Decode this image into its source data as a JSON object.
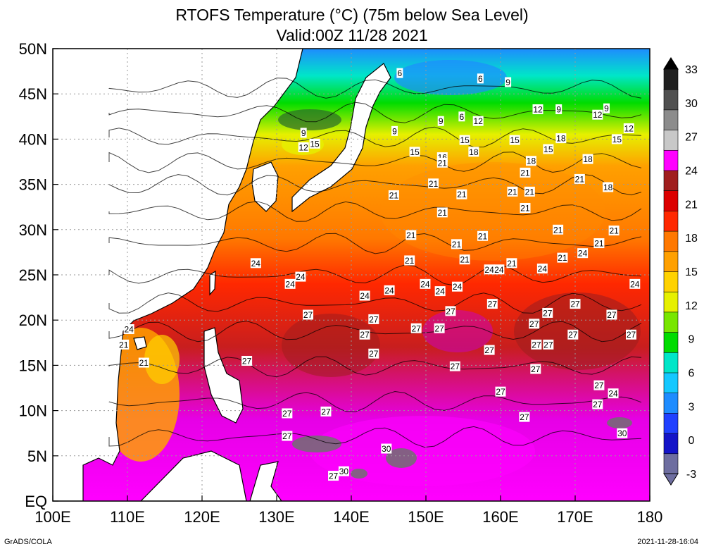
{
  "title_line1": "RTOFS Temperature (°C) (75m below Sea Level)",
  "title_line2": "Valid:00Z 11/28 2021",
  "footer_left": "GrADS/COLA",
  "footer_right": "2021-11-28-16:04",
  "map": {
    "lon_range": [
      100,
      180
    ],
    "lat_range": [
      0,
      50
    ],
    "x_ticks": [
      {
        "v": 100,
        "label": "100E"
      },
      {
        "v": 110,
        "label": "110E"
      },
      {
        "v": 120,
        "label": "120E"
      },
      {
        "v": 130,
        "label": "130E"
      },
      {
        "v": 140,
        "label": "140E"
      },
      {
        "v": 150,
        "label": "150E"
      },
      {
        "v": 160,
        "label": "160E"
      },
      {
        "v": 170,
        "label": "170E"
      },
      {
        "v": 180,
        "label": "180"
      }
    ],
    "y_ticks": [
      {
        "v": 0,
        "label": "EQ"
      },
      {
        "v": 5,
        "label": "5N"
      },
      {
        "v": 10,
        "label": "10N"
      },
      {
        "v": 15,
        "label": "15N"
      },
      {
        "v": 20,
        "label": "20N"
      },
      {
        "v": 25,
        "label": "25N"
      },
      {
        "v": 30,
        "label": "30N"
      },
      {
        "v": 35,
        "label": "35N"
      },
      {
        "v": 40,
        "label": "40N"
      },
      {
        "v": 45,
        "label": "45N"
      },
      {
        "v": 50,
        "label": "50N"
      }
    ],
    "grid": true
  },
  "colorbar": {
    "labels": [
      "-3",
      "0",
      "3",
      "6",
      "9",
      "12",
      "15",
      "18",
      "21",
      "24",
      "27",
      "30",
      "33"
    ],
    "colors": [
      "#6e6ea0",
      "#1414c8",
      "#2040ff",
      "#1e8cff",
      "#14c8ff",
      "#00e6c8",
      "#00dc00",
      "#78e600",
      "#e6f000",
      "#ffd200",
      "#ffa000",
      "#ff7800",
      "#ff2800",
      "#dc0000",
      "#a01e1e",
      "#ff00ff",
      "#c8c8c8",
      "#8c8c8c",
      "#505050",
      "#202020"
    ]
  },
  "contour_labels": [
    {
      "t": "6",
      "lon": 157.3,
      "lat": 46.7
    },
    {
      "t": "9",
      "lon": 161.0,
      "lat": 46.3
    },
    {
      "t": "12",
      "lon": 165.0,
      "lat": 43.3
    },
    {
      "t": "9",
      "lon": 167.8,
      "lat": 43.3
    },
    {
      "t": "12",
      "lon": 173.0,
      "lat": 42.7
    },
    {
      "t": "9",
      "lon": 174.2,
      "lat": 43.4
    },
    {
      "t": "6",
      "lon": 154.8,
      "lat": 42.5
    },
    {
      "t": "9",
      "lon": 152.0,
      "lat": 42.0
    },
    {
      "t": "12",
      "lon": 157.0,
      "lat": 42.0
    },
    {
      "t": "9",
      "lon": 145.8,
      "lat": 40.9
    },
    {
      "t": "6",
      "lon": 146.5,
      "lat": 47.3
    },
    {
      "t": "9",
      "lon": 133.6,
      "lat": 40.7
    },
    {
      "t": "12",
      "lon": 133.6,
      "lat": 39.1
    },
    {
      "t": "15",
      "lon": 135.1,
      "lat": 39.5
    },
    {
      "t": "15",
      "lon": 155.2,
      "lat": 39.9
    },
    {
      "t": "15",
      "lon": 161.9,
      "lat": 39.9
    },
    {
      "t": "18",
      "lon": 168.1,
      "lat": 40.1
    },
    {
      "t": "15",
      "lon": 175.6,
      "lat": 40.0
    },
    {
      "t": "12",
      "lon": 177.2,
      "lat": 41.2
    },
    {
      "t": "15",
      "lon": 148.5,
      "lat": 38.6
    },
    {
      "t": "18",
      "lon": 156.4,
      "lat": 38.6
    },
    {
      "t": "15",
      "lon": 166.4,
      "lat": 38.9
    },
    {
      "t": "18",
      "lon": 164.1,
      "lat": 37.6
    },
    {
      "t": "18",
      "lon": 171.7,
      "lat": 37.8
    },
    {
      "t": "16",
      "lon": 152.2,
      "lat": 38.0
    },
    {
      "t": "21",
      "lon": 152.2,
      "lat": 37.4
    },
    {
      "t": "21",
      "lon": 163.3,
      "lat": 36.3
    },
    {
      "t": "21",
      "lon": 170.6,
      "lat": 35.6
    },
    {
      "t": "18",
      "lon": 174.4,
      "lat": 34.7
    },
    {
      "t": "21",
      "lon": 151.0,
      "lat": 35.1
    },
    {
      "t": "21",
      "lon": 145.7,
      "lat": 33.8
    },
    {
      "t": "21",
      "lon": 154.8,
      "lat": 33.9
    },
    {
      "t": "21",
      "lon": 161.6,
      "lat": 34.2
    },
    {
      "t": "21",
      "lon": 163.9,
      "lat": 34.2
    },
    {
      "t": "21",
      "lon": 163.3,
      "lat": 32.4
    },
    {
      "t": "21",
      "lon": 152.2,
      "lat": 31.9
    },
    {
      "t": "21",
      "lon": 148.0,
      "lat": 29.4
    },
    {
      "t": "21",
      "lon": 157.6,
      "lat": 29.3
    },
    {
      "t": "21",
      "lon": 167.7,
      "lat": 30.0
    },
    {
      "t": "21",
      "lon": 175.2,
      "lat": 29.9
    },
    {
      "t": "21",
      "lon": 154.1,
      "lat": 28.4
    },
    {
      "t": "21",
      "lon": 173.2,
      "lat": 28.5
    },
    {
      "t": "24",
      "lon": 171.0,
      "lat": 27.4
    },
    {
      "t": "21",
      "lon": 168.3,
      "lat": 26.9
    },
    {
      "t": "21",
      "lon": 147.8,
      "lat": 26.6
    },
    {
      "t": "21",
      "lon": 155.2,
      "lat": 26.7
    },
    {
      "t": "21",
      "lon": 161.5,
      "lat": 26.3
    },
    {
      "t": "24",
      "lon": 158.5,
      "lat": 25.6
    },
    {
      "t": "24",
      "lon": 159.8,
      "lat": 25.6
    },
    {
      "t": "24",
      "lon": 165.6,
      "lat": 25.7
    },
    {
      "t": "24",
      "lon": 133.2,
      "lat": 24.8
    },
    {
      "t": "24",
      "lon": 131.8,
      "lat": 24.0
    },
    {
      "t": "24",
      "lon": 127.2,
      "lat": 26.3
    },
    {
      "t": "24",
      "lon": 149.9,
      "lat": 24.0
    },
    {
      "t": "24",
      "lon": 145.1,
      "lat": 23.3
    },
    {
      "t": "24",
      "lon": 151.9,
      "lat": 23.2
    },
    {
      "t": "24",
      "lon": 154.2,
      "lat": 23.7
    },
    {
      "t": "24",
      "lon": 141.8,
      "lat": 22.7
    },
    {
      "t": "24",
      "lon": 178.0,
      "lat": 24.0
    },
    {
      "t": "27",
      "lon": 134.2,
      "lat": 20.6
    },
    {
      "t": "27",
      "lon": 143.0,
      "lat": 20.1
    },
    {
      "t": "27",
      "lon": 153.3,
      "lat": 21.0
    },
    {
      "t": "27",
      "lon": 158.9,
      "lat": 21.8
    },
    {
      "t": "27",
      "lon": 170.0,
      "lat": 21.8
    },
    {
      "t": "27",
      "lon": 166.3,
      "lat": 20.8
    },
    {
      "t": "27",
      "lon": 174.9,
      "lat": 20.6
    },
    {
      "t": "27",
      "lon": 148.7,
      "lat": 19.1
    },
    {
      "t": "27",
      "lon": 151.8,
      "lat": 19.1
    },
    {
      "t": "27",
      "lon": 141.8,
      "lat": 18.4
    },
    {
      "t": "27",
      "lon": 164.5,
      "lat": 19.6
    },
    {
      "t": "27",
      "lon": 169.7,
      "lat": 18.4
    },
    {
      "t": "27",
      "lon": 177.5,
      "lat": 18.4
    },
    {
      "t": "27",
      "lon": 164.8,
      "lat": 17.3
    },
    {
      "t": "27",
      "lon": 166.4,
      "lat": 17.3
    },
    {
      "t": "27",
      "lon": 158.5,
      "lat": 16.7
    },
    {
      "t": "27",
      "lon": 143.0,
      "lat": 16.3
    },
    {
      "t": "27",
      "lon": 126.0,
      "lat": 15.5
    },
    {
      "t": "27",
      "lon": 153.9,
      "lat": 14.9
    },
    {
      "t": "27",
      "lon": 164.7,
      "lat": 14.6
    },
    {
      "t": "27",
      "lon": 160.0,
      "lat": 12.1
    },
    {
      "t": "27",
      "lon": 173.2,
      "lat": 12.8
    },
    {
      "t": "24",
      "lon": 175.1,
      "lat": 11.9
    },
    {
      "t": "27",
      "lon": 173.0,
      "lat": 10.7
    },
    {
      "t": "27",
      "lon": 131.4,
      "lat": 9.7
    },
    {
      "t": "27",
      "lon": 136.6,
      "lat": 9.9
    },
    {
      "t": "27",
      "lon": 163.2,
      "lat": 9.3
    },
    {
      "t": "27",
      "lon": 131.4,
      "lat": 7.2
    },
    {
      "t": "30",
      "lon": 176.3,
      "lat": 7.5
    },
    {
      "t": "30",
      "lon": 144.7,
      "lat": 5.8
    },
    {
      "t": "30",
      "lon": 139.0,
      "lat": 3.3
    },
    {
      "t": "27",
      "lon": 137.6,
      "lat": 2.8
    },
    {
      "t": "24",
      "lon": 110.2,
      "lat": 19.0
    },
    {
      "t": "21",
      "lon": 109.5,
      "lat": 17.3
    },
    {
      "t": "21",
      "lon": 112.2,
      "lat": 15.3
    }
  ]
}
